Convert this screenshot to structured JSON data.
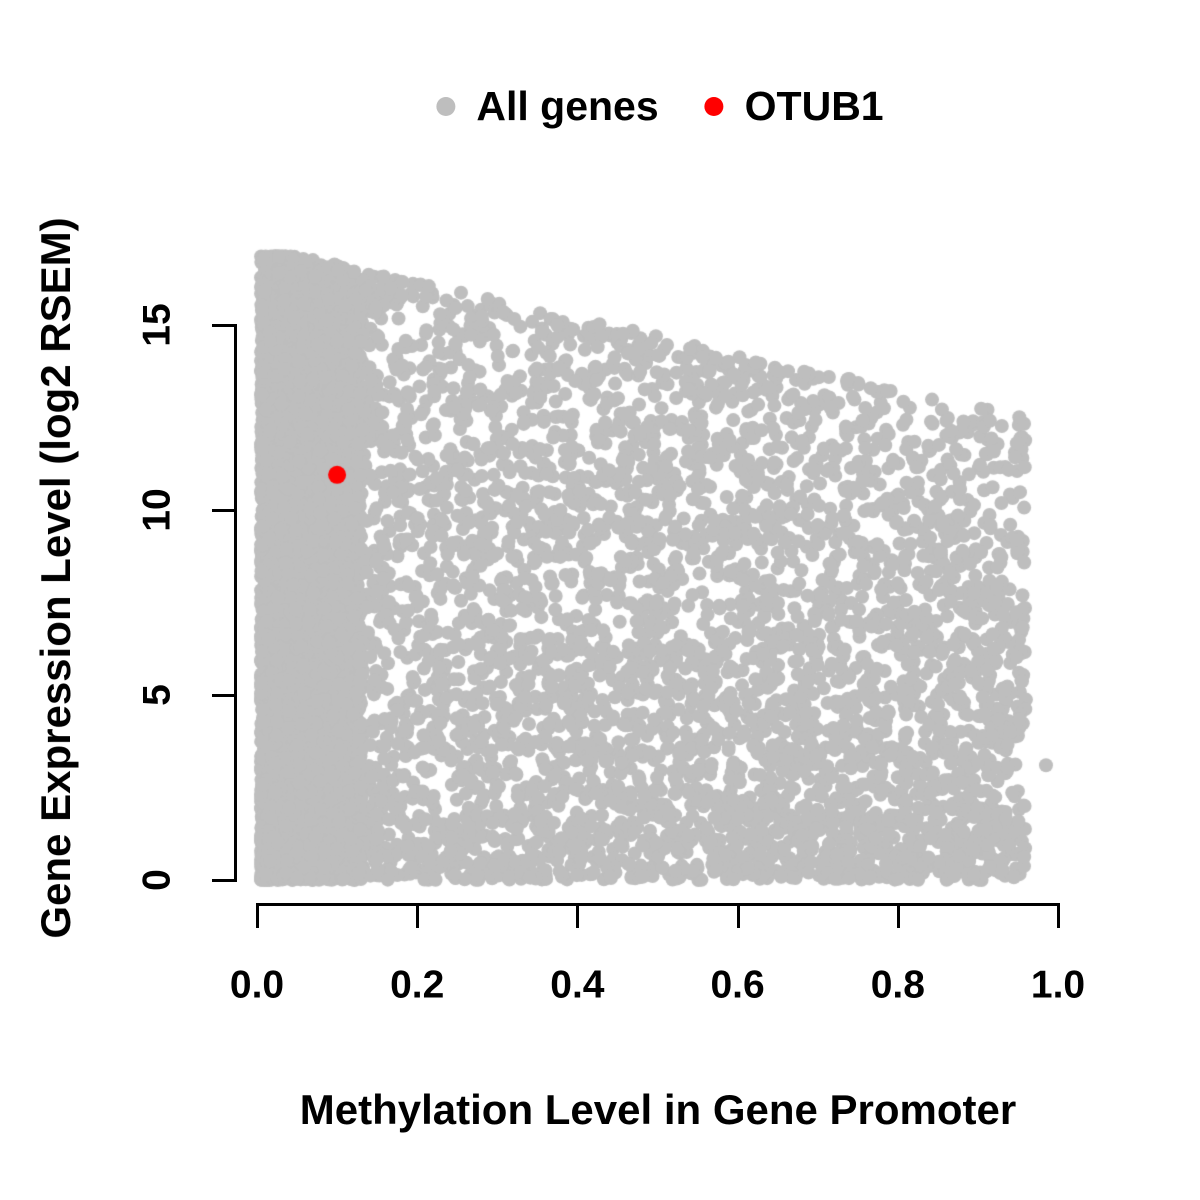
{
  "figure": {
    "background": "#ffffff",
    "axis_color": "#000000"
  },
  "legend": {
    "position": "top-center",
    "items": [
      {
        "label": "All genes",
        "color": "#bebebe"
      },
      {
        "label": "OTUB1",
        "color": "#ff0000"
      }
    ]
  },
  "chart_data": {
    "type": "scatter",
    "title": "",
    "xlabel": "Methylation Level in Gene Promoter",
    "ylabel": "Gene Expression Level (log2 RSEM)",
    "xlim": [
      0.0,
      1.0
    ],
    "ylim": [
      0,
      15
    ],
    "x_ticks": [
      0.0,
      0.2,
      0.4,
      0.6,
      0.8,
      1.0
    ],
    "x_tick_labels": [
      "0.0",
      "0.2",
      "0.4",
      "0.6",
      "0.8",
      "1.0"
    ],
    "y_ticks": [
      0,
      5,
      10,
      15
    ],
    "y_tick_labels": [
      "0",
      "5",
      "10",
      "15"
    ],
    "grid": false,
    "legend_position": "top-center",
    "series": [
      {
        "name": "All genes",
        "color": "#bebebe",
        "marker": "circle",
        "marker_radius_px": 7,
        "summary": "Dense triangular cloud of ~9000 genes. Methylation spans 0.005-0.96; expression spans 0-16.8 log2 RSEM. Upper envelope of the cloud declines from ~16.5 at methylation 0 to ~11.5 at methylation 0.95. Density is highest at low methylation (left column) and at low expression (bottom band).",
        "generator": {
          "seed": 1337,
          "n": 9000,
          "x_min": 0.005,
          "x_max": 0.96,
          "left_cluster_fraction": 0.42,
          "left_cluster_width": 0.125,
          "left_cluster_power": 1.35,
          "spread_power": 1.12,
          "envelope_intercept": 15.2,
          "envelope_slope": -4.8,
          "y_power": 1.28,
          "above_edge_fraction": 0.1,
          "above_edge_extra": 1.9,
          "y_max_clip": 16.85
        },
        "extra_points": [
          [
            0.985,
            3.1
          ]
        ]
      },
      {
        "name": "OTUB1",
        "color": "#ff0000",
        "marker": "circle",
        "marker_radius_px": 9,
        "points": [
          [
            0.1,
            10.95
          ]
        ]
      }
    ]
  }
}
